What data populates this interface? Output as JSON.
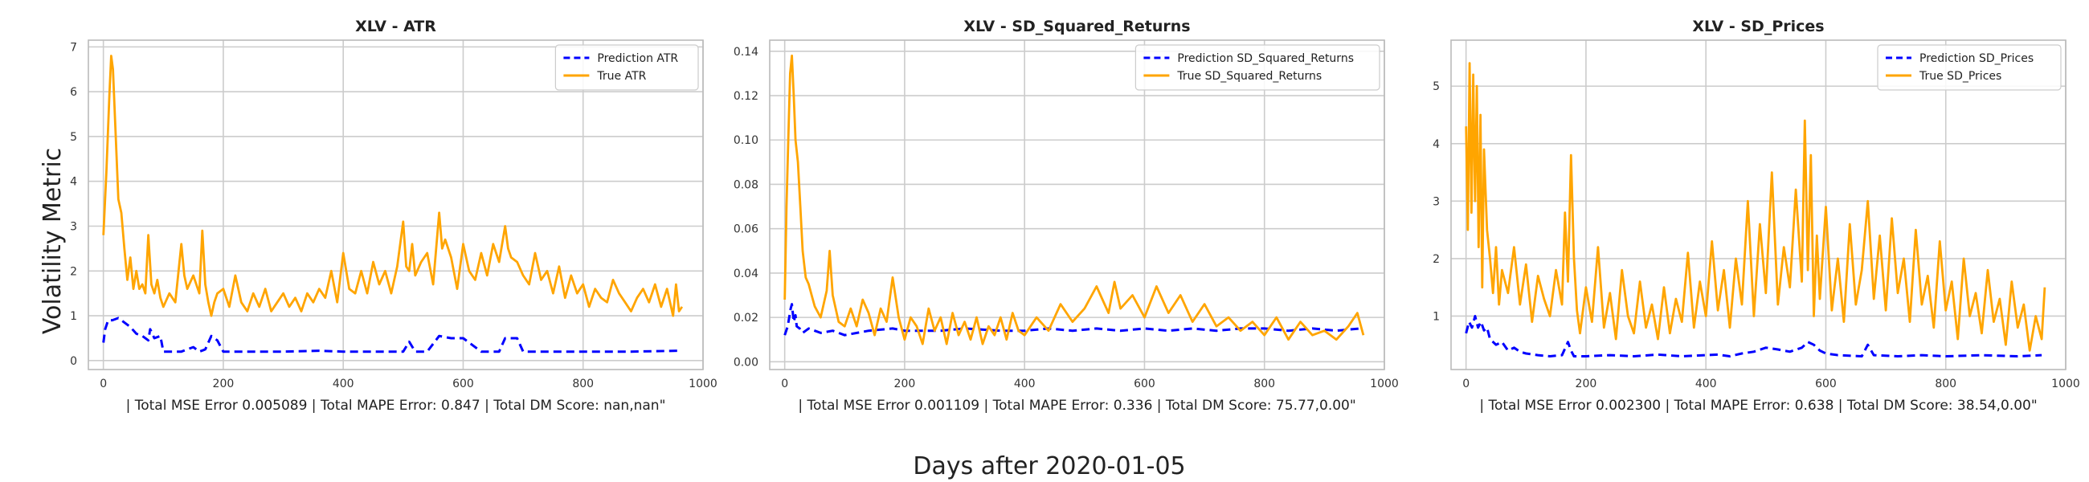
{
  "figure": {
    "ylabel": "Volatility Metric",
    "xlabel": "Days after 2020-01-05"
  },
  "colors": {
    "prediction": "#0000ff",
    "true": "#ffa500"
  },
  "chart_data": [
    {
      "type": "line",
      "title": "XLV - ATR",
      "xlabel": "| Total MSE Error 0.005089 | Total MAPE Error: 0.847 | Total DM Score: nan,nan\"",
      "xlim": [
        -25,
        1000
      ],
      "ylim": [
        -0.2,
        7.15
      ],
      "xticks": [
        0,
        200,
        400,
        600,
        800,
        1000
      ],
      "yticks": [
        0,
        1,
        2,
        3,
        4,
        5,
        6,
        7
      ],
      "legend": "top-right",
      "series": [
        {
          "name": "Prediction ATR",
          "style": "dashed",
          "color": "#0000ff",
          "x": [
            0,
            3,
            8,
            15,
            25,
            35,
            45,
            55,
            65,
            75,
            78,
            85,
            95,
            100,
            110,
            130,
            150,
            160,
            170,
            180,
            190,
            200,
            260,
            300,
            360,
            400,
            440,
            480,
            500,
            510,
            520,
            540,
            560,
            580,
            585,
            600,
            630,
            660,
            670,
            690,
            700,
            720,
            800,
            880,
            960
          ],
          "y": [
            0.4,
            0.7,
            0.9,
            0.9,
            0.95,
            0.85,
            0.75,
            0.6,
            0.55,
            0.45,
            0.7,
            0.5,
            0.55,
            0.2,
            0.2,
            0.2,
            0.3,
            0.2,
            0.25,
            0.55,
            0.45,
            0.2,
            0.2,
            0.2,
            0.22,
            0.2,
            0.2,
            0.2,
            0.2,
            0.42,
            0.2,
            0.2,
            0.55,
            0.5,
            0.5,
            0.5,
            0.2,
            0.2,
            0.5,
            0.5,
            0.2,
            0.2,
            0.2,
            0.2,
            0.22
          ]
        },
        {
          "name": "True ATR",
          "style": "solid",
          "color": "#ffa500",
          "x": [
            0,
            5,
            10,
            13,
            16,
            20,
            25,
            30,
            35,
            40,
            45,
            50,
            55,
            60,
            65,
            70,
            75,
            80,
            85,
            90,
            95,
            100,
            110,
            120,
            130,
            135,
            140,
            150,
            160,
            165,
            170,
            175,
            180,
            185,
            190,
            200,
            210,
            220,
            230,
            240,
            250,
            260,
            270,
            280,
            290,
            300,
            310,
            320,
            330,
            340,
            350,
            360,
            370,
            380,
            390,
            400,
            410,
            420,
            430,
            440,
            450,
            460,
            470,
            480,
            490,
            500,
            505,
            510,
            515,
            520,
            530,
            540,
            550,
            560,
            565,
            570,
            580,
            590,
            600,
            610,
            620,
            630,
            640,
            650,
            660,
            670,
            675,
            680,
            690,
            700,
            710,
            720,
            730,
            740,
            750,
            760,
            770,
            780,
            790,
            800,
            810,
            820,
            830,
            840,
            850,
            860,
            870,
            880,
            890,
            900,
            910,
            920,
            930,
            940,
            950,
            955,
            960,
            965
          ],
          "y": [
            2.8,
            4.2,
            5.9,
            6.8,
            6.5,
            5.2,
            3.6,
            3.3,
            2.5,
            1.8,
            2.3,
            1.6,
            2.0,
            1.6,
            1.7,
            1.5,
            2.8,
            1.7,
            1.5,
            1.8,
            1.4,
            1.2,
            1.5,
            1.3,
            2.6,
            1.9,
            1.6,
            1.9,
            1.5,
            2.9,
            1.7,
            1.3,
            1.0,
            1.3,
            1.5,
            1.6,
            1.2,
            1.9,
            1.3,
            1.1,
            1.5,
            1.2,
            1.6,
            1.1,
            1.3,
            1.5,
            1.2,
            1.4,
            1.1,
            1.5,
            1.3,
            1.6,
            1.4,
            2.0,
            1.3,
            2.4,
            1.6,
            1.5,
            2.0,
            1.5,
            2.2,
            1.7,
            2.0,
            1.5,
            2.1,
            3.1,
            2.1,
            2.0,
            2.6,
            1.9,
            2.2,
            2.4,
            1.7,
            3.3,
            2.5,
            2.7,
            2.3,
            1.6,
            2.6,
            2.0,
            1.8,
            2.4,
            1.9,
            2.6,
            2.2,
            3.0,
            2.5,
            2.3,
            2.2,
            1.9,
            1.7,
            2.4,
            1.8,
            2.0,
            1.5,
            2.1,
            1.4,
            1.9,
            1.5,
            1.7,
            1.2,
            1.6,
            1.4,
            1.3,
            1.8,
            1.5,
            1.3,
            1.1,
            1.4,
            1.6,
            1.3,
            1.7,
            1.2,
            1.6,
            1.0,
            1.7,
            1.1,
            1.2
          ]
        }
      ]
    },
    {
      "type": "line",
      "title": "XLV - SD_Squared_Returns",
      "xlabel": "| Total MSE Error 0.001109 | Total MAPE Error: 0.336 | Total DM Score: 75.77,0.00\"",
      "xlim": [
        -25,
        1000
      ],
      "ylim": [
        -0.0035,
        0.145
      ],
      "xticks": [
        0,
        200,
        400,
        600,
        800,
        1000
      ],
      "yticks": [
        0.0,
        0.02,
        0.04,
        0.06,
        0.08,
        0.1,
        0.12,
        0.14
      ],
      "legend": "top-right",
      "series": [
        {
          "name": "Prediction SD_Squared_Returns",
          "style": "dashed",
          "color": "#0000ff",
          "x": [
            0,
            5,
            10,
            12,
            15,
            18,
            20,
            25,
            30,
            40,
            60,
            80,
            100,
            140,
            180,
            200,
            260,
            300,
            360,
            400,
            440,
            480,
            520,
            560,
            600,
            640,
            680,
            720,
            760,
            800,
            840,
            880,
            920,
            960
          ],
          "y": [
            0.012,
            0.016,
            0.024,
            0.026,
            0.018,
            0.021,
            0.016,
            0.015,
            0.013,
            0.015,
            0.013,
            0.014,
            0.012,
            0.014,
            0.015,
            0.014,
            0.014,
            0.015,
            0.014,
            0.014,
            0.015,
            0.014,
            0.015,
            0.014,
            0.015,
            0.014,
            0.015,
            0.014,
            0.015,
            0.015,
            0.014,
            0.015,
            0.014,
            0.015
          ]
        },
        {
          "name": "True SD_Squared_Returns",
          "style": "solid",
          "color": "#ffa500",
          "x": [
            0,
            3,
            6,
            9,
            12,
            15,
            18,
            22,
            26,
            30,
            35,
            40,
            45,
            50,
            60,
            70,
            75,
            80,
            90,
            100,
            110,
            120,
            130,
            140,
            150,
            160,
            170,
            180,
            190,
            200,
            210,
            220,
            230,
            240,
            250,
            260,
            270,
            280,
            290,
            300,
            310,
            320,
            330,
            340,
            350,
            360,
            370,
            380,
            390,
            400,
            420,
            440,
            460,
            480,
            500,
            520,
            530,
            540,
            550,
            560,
            580,
            600,
            620,
            640,
            660,
            680,
            700,
            720,
            740,
            760,
            780,
            800,
            820,
            840,
            860,
            880,
            900,
            920,
            940,
            955,
            965
          ],
          "y": [
            0.028,
            0.07,
            0.1,
            0.13,
            0.138,
            0.12,
            0.1,
            0.09,
            0.07,
            0.05,
            0.038,
            0.035,
            0.03,
            0.025,
            0.02,
            0.032,
            0.05,
            0.03,
            0.018,
            0.016,
            0.024,
            0.016,
            0.028,
            0.022,
            0.012,
            0.024,
            0.018,
            0.038,
            0.02,
            0.01,
            0.02,
            0.016,
            0.008,
            0.024,
            0.014,
            0.02,
            0.008,
            0.022,
            0.012,
            0.018,
            0.01,
            0.02,
            0.008,
            0.016,
            0.012,
            0.02,
            0.01,
            0.022,
            0.014,
            0.012,
            0.02,
            0.014,
            0.026,
            0.018,
            0.024,
            0.034,
            0.028,
            0.022,
            0.036,
            0.024,
            0.03,
            0.02,
            0.034,
            0.022,
            0.03,
            0.018,
            0.026,
            0.016,
            0.02,
            0.014,
            0.018,
            0.012,
            0.02,
            0.01,
            0.018,
            0.012,
            0.014,
            0.01,
            0.016,
            0.022,
            0.012
          ]
        }
      ]
    },
    {
      "type": "line",
      "title": "XLV - SD_Prices",
      "xlabel": "| Total MSE Error 0.002300 | Total MAPE Error: 0.638 | Total DM Score: 38.54,0.00\"",
      "xlim": [
        -25,
        1000
      ],
      "ylim": [
        0.07,
        5.8
      ],
      "xticks": [
        0,
        200,
        400,
        600,
        800,
        1000
      ],
      "yticks": [
        1,
        2,
        3,
        4,
        5
      ],
      "legend": "top-right",
      "series": [
        {
          "name": "Prediction SD_Prices",
          "style": "dashed",
          "color": "#0000ff",
          "x": [
            0,
            5,
            10,
            15,
            20,
            25,
            30,
            35,
            40,
            50,
            60,
            70,
            80,
            90,
            100,
            120,
            140,
            160,
            170,
            175,
            180,
            200,
            240,
            280,
            320,
            360,
            400,
            420,
            440,
            460,
            480,
            500,
            520,
            540,
            560,
            570,
            580,
            590,
            600,
            620,
            660,
            670,
            680,
            720,
            760,
            800,
            860,
            920,
            960
          ],
          "y": [
            0.7,
            0.9,
            0.8,
            1.0,
            0.8,
            0.9,
            0.75,
            0.8,
            0.6,
            0.5,
            0.55,
            0.4,
            0.45,
            0.38,
            0.35,
            0.32,
            0.3,
            0.32,
            0.55,
            0.4,
            0.3,
            0.3,
            0.32,
            0.3,
            0.33,
            0.3,
            0.32,
            0.33,
            0.3,
            0.35,
            0.38,
            0.45,
            0.42,
            0.38,
            0.45,
            0.55,
            0.5,
            0.4,
            0.35,
            0.32,
            0.3,
            0.5,
            0.32,
            0.3,
            0.32,
            0.3,
            0.32,
            0.3,
            0.32
          ]
        },
        {
          "name": "True SD_Prices",
          "style": "solid",
          "color": "#ffa500",
          "x": [
            0,
            3,
            6,
            9,
            12,
            15,
            18,
            21,
            24,
            27,
            30,
            35,
            40,
            45,
            50,
            55,
            60,
            70,
            80,
            90,
            100,
            110,
            120,
            130,
            140,
            150,
            160,
            165,
            170,
            175,
            180,
            185,
            190,
            200,
            210,
            220,
            230,
            240,
            250,
            260,
            270,
            280,
            290,
            300,
            310,
            320,
            330,
            340,
            350,
            360,
            370,
            380,
            390,
            400,
            410,
            420,
            430,
            440,
            450,
            460,
            470,
            480,
            490,
            500,
            510,
            520,
            530,
            540,
            550,
            560,
            565,
            570,
            575,
            580,
            585,
            590,
            600,
            610,
            620,
            630,
            640,
            650,
            660,
            670,
            680,
            690,
            700,
            710,
            720,
            730,
            740,
            750,
            760,
            770,
            780,
            790,
            800,
            810,
            820,
            830,
            840,
            850,
            860,
            870,
            880,
            890,
            900,
            910,
            920,
            930,
            940,
            950,
            960,
            965
          ],
          "y": [
            4.3,
            2.5,
            5.4,
            2.8,
            5.2,
            3.0,
            5.0,
            2.2,
            4.5,
            1.5,
            3.9,
            2.5,
            2.0,
            1.4,
            2.2,
            1.2,
            1.8,
            1.4,
            2.2,
            1.2,
            1.9,
            0.9,
            1.7,
            1.3,
            1.0,
            1.8,
            1.2,
            2.8,
            1.6,
            3.8,
            2.0,
            1.1,
            0.7,
            1.5,
            0.9,
            2.2,
            0.8,
            1.4,
            0.6,
            1.8,
            1.0,
            0.7,
            1.6,
            0.8,
            1.2,
            0.6,
            1.5,
            0.7,
            1.3,
            0.9,
            2.1,
            0.8,
            1.6,
            1.0,
            2.3,
            1.1,
            1.8,
            0.8,
            2.0,
            1.2,
            3.0,
            1.0,
            2.6,
            1.4,
            3.5,
            1.2,
            2.2,
            1.5,
            3.2,
            1.6,
            4.4,
            1.8,
            3.8,
            1.0,
            2.4,
            1.3,
            2.9,
            1.1,
            2.0,
            0.9,
            2.6,
            1.2,
            1.8,
            3.0,
            1.3,
            2.4,
            1.1,
            2.7,
            1.4,
            2.0,
            0.9,
            2.5,
            1.2,
            1.7,
            0.8,
            2.3,
            1.1,
            1.6,
            0.6,
            2.0,
            1.0,
            1.4,
            0.7,
            1.8,
            0.9,
            1.3,
            0.5,
            1.6,
            0.8,
            1.2,
            0.4,
            1.0,
            0.6,
            1.5
          ]
        }
      ]
    }
  ]
}
